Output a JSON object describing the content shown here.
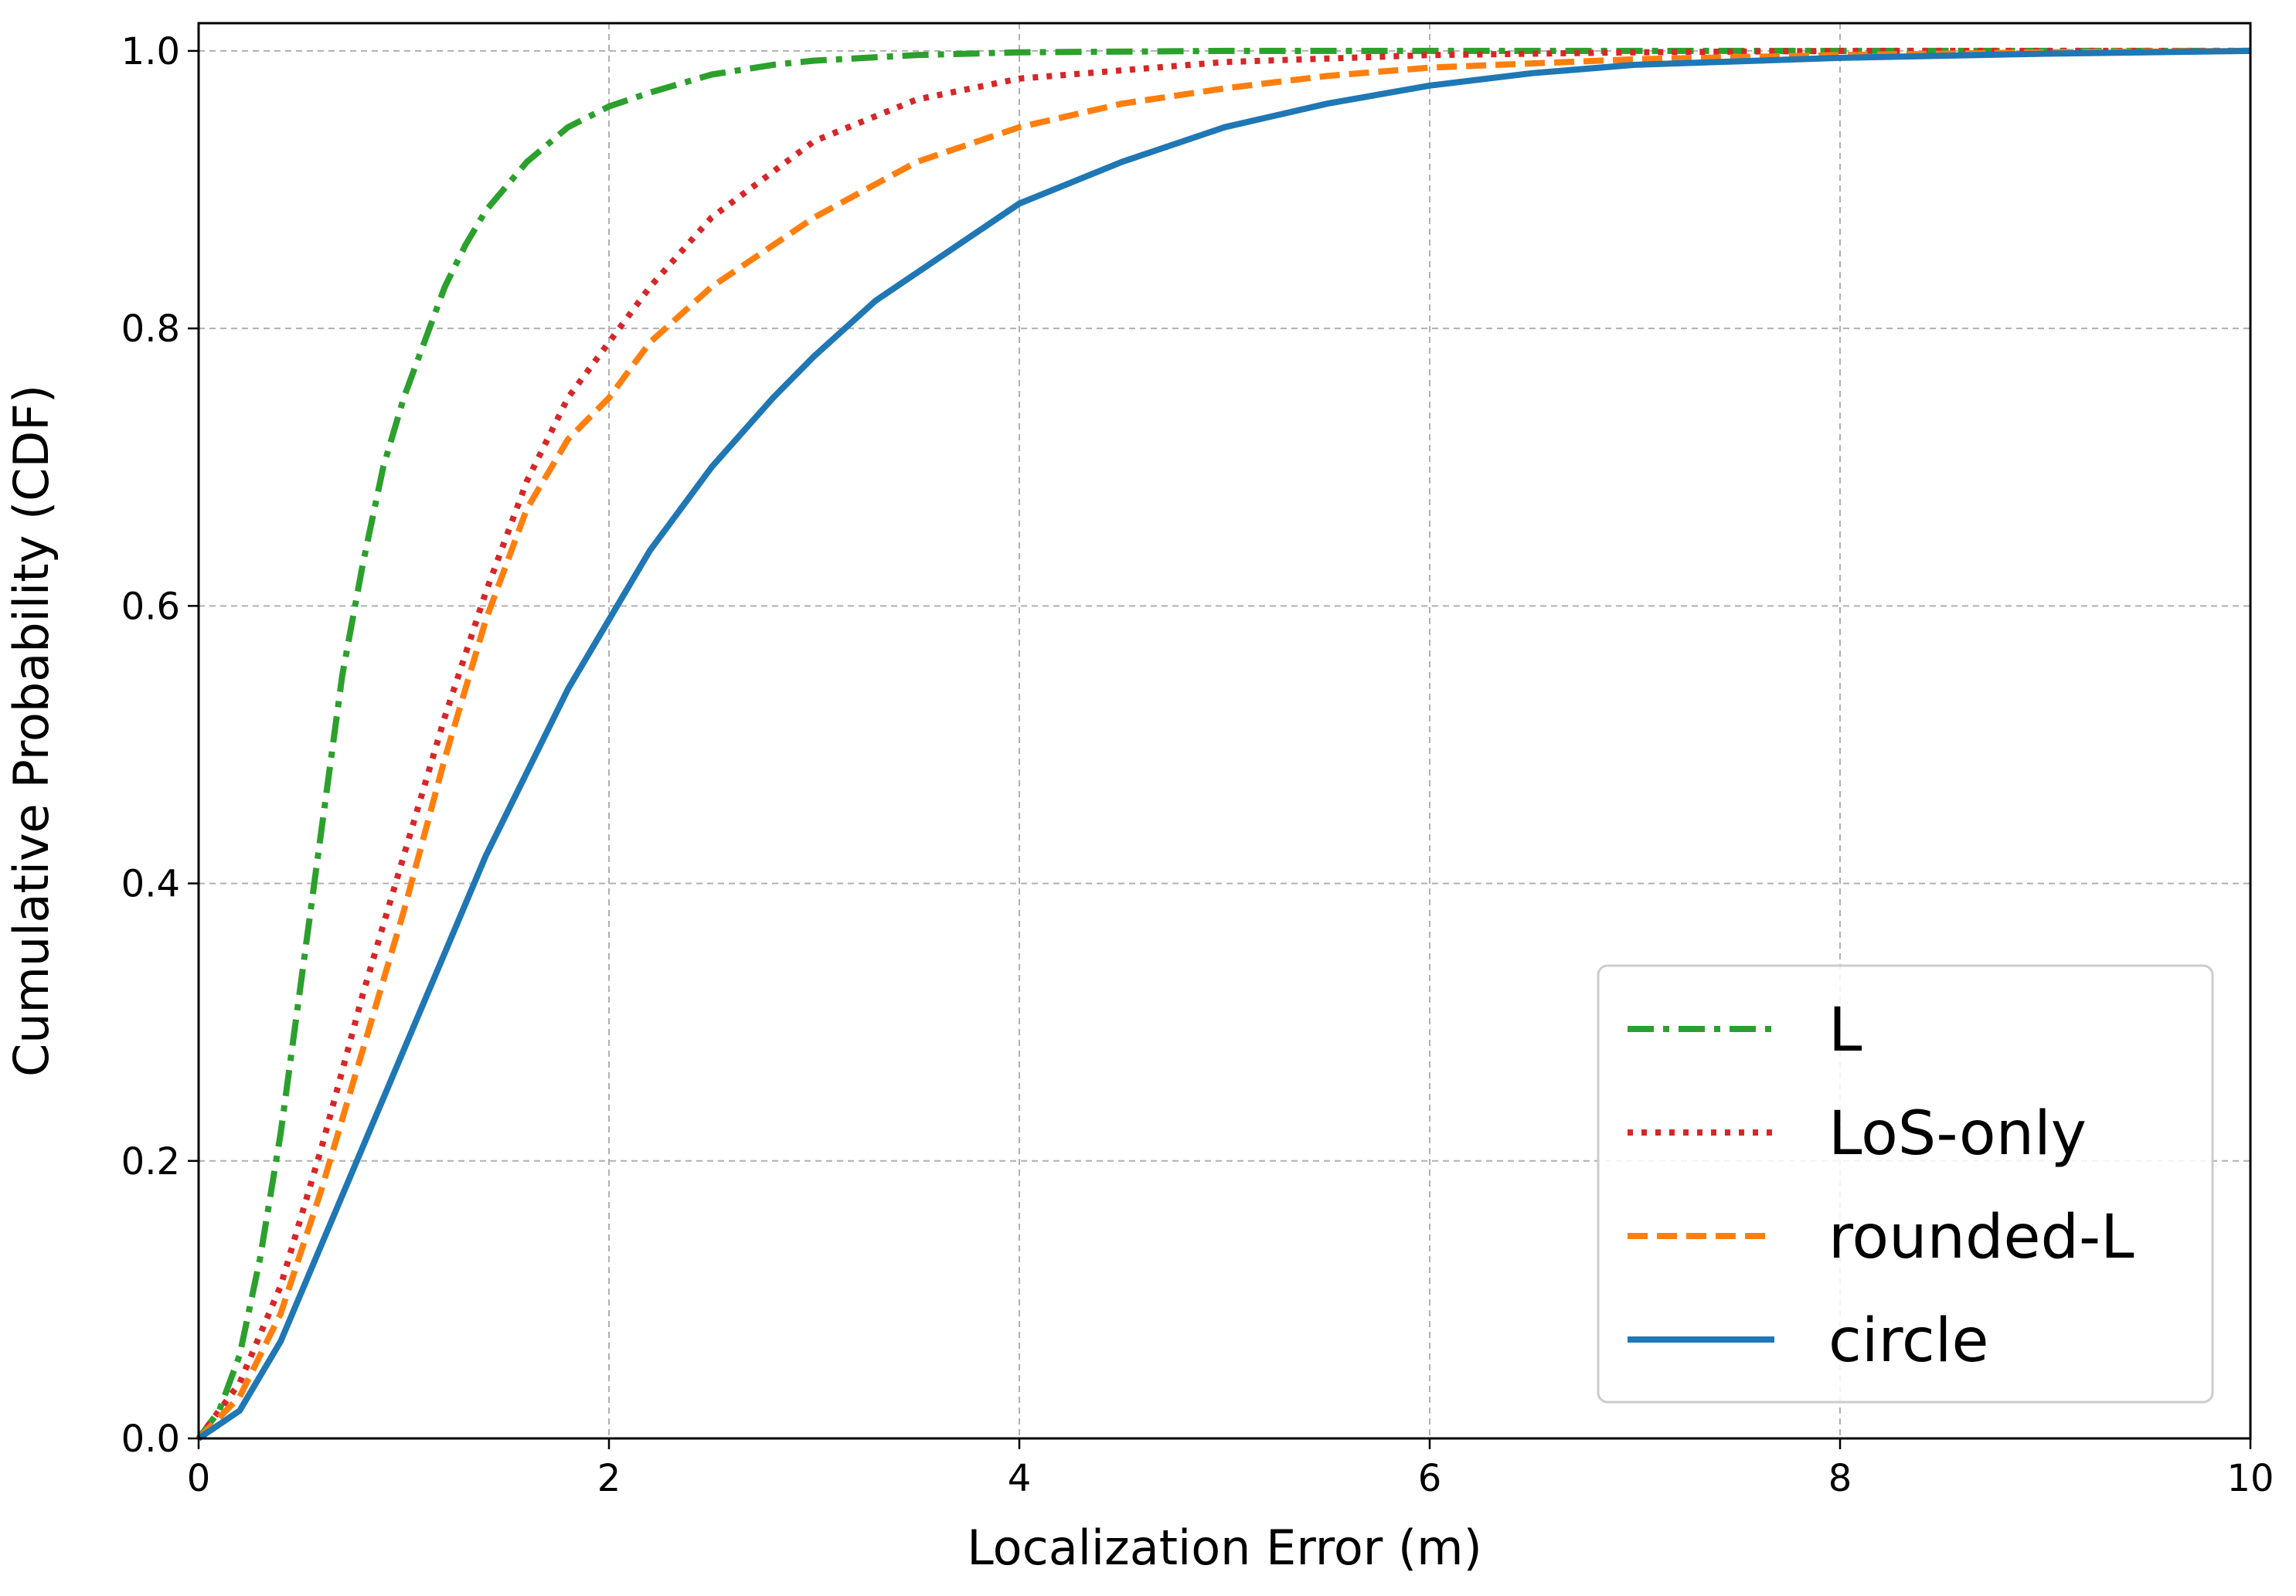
{
  "chart_data": {
    "type": "line",
    "title": "",
    "xlabel": "Localization Error (m)",
    "ylabel": "Cumulative Probability (CDF)",
    "xlim": [
      0,
      10
    ],
    "ylim": [
      0,
      1.02
    ],
    "xticks": [
      0,
      2,
      4,
      6,
      8,
      10
    ],
    "xtick_labels": [
      "0",
      "2",
      "4",
      "6",
      "8",
      "10"
    ],
    "yticks": [
      0,
      0.2,
      0.4,
      0.6,
      0.8,
      1.0
    ],
    "ytick_labels": [
      "0.0",
      "0.2",
      "0.4",
      "0.6",
      "0.8",
      "1.0"
    ],
    "grid": true,
    "legend_position": "lower-right",
    "series": [
      {
        "name": "L",
        "color": "#2ca02c",
        "style": "dashdot",
        "x": [
          0,
          0.1,
          0.2,
          0.3,
          0.4,
          0.5,
          0.6,
          0.7,
          0.8,
          0.9,
          1.0,
          1.1,
          1.2,
          1.3,
          1.4,
          1.6,
          1.8,
          2.0,
          2.2,
          2.5,
          2.8,
          3.0,
          3.5,
          4.0,
          5.0,
          6.0,
          8.0,
          10.0
        ],
        "y": [
          0,
          0.02,
          0.06,
          0.13,
          0.22,
          0.33,
          0.44,
          0.55,
          0.63,
          0.7,
          0.75,
          0.79,
          0.83,
          0.86,
          0.885,
          0.92,
          0.945,
          0.96,
          0.97,
          0.983,
          0.99,
          0.993,
          0.997,
          0.999,
          1.0,
          1.0,
          1.0,
          1.0
        ]
      },
      {
        "name": "LoS-only",
        "color": "#d62728",
        "style": "dotted",
        "x": [
          0,
          0.2,
          0.4,
          0.6,
          0.8,
          1.0,
          1.2,
          1.4,
          1.6,
          1.8,
          2.0,
          2.2,
          2.5,
          3.0,
          3.5,
          4.0,
          5.0,
          6.0,
          7.0,
          8.0,
          10.0
        ],
        "y": [
          0,
          0.04,
          0.11,
          0.21,
          0.32,
          0.42,
          0.52,
          0.61,
          0.69,
          0.75,
          0.79,
          0.83,
          0.88,
          0.935,
          0.965,
          0.98,
          0.992,
          0.997,
          0.999,
          1.0,
          1.0
        ]
      },
      {
        "name": "rounded-L",
        "color": "#ff7f0e",
        "style": "dashed",
        "x": [
          0,
          0.2,
          0.4,
          0.6,
          0.8,
          1.0,
          1.2,
          1.4,
          1.6,
          1.8,
          2.0,
          2.2,
          2.5,
          3.0,
          3.5,
          4.0,
          4.5,
          5.0,
          5.5,
          6.0,
          7.0,
          8.0,
          9.0,
          10.0
        ],
        "y": [
          0,
          0.03,
          0.09,
          0.18,
          0.28,
          0.38,
          0.49,
          0.59,
          0.67,
          0.72,
          0.75,
          0.79,
          0.83,
          0.88,
          0.92,
          0.945,
          0.962,
          0.973,
          0.982,
          0.988,
          0.994,
          0.997,
          0.999,
          1.0
        ]
      },
      {
        "name": "circle",
        "color": "#1f77b4",
        "style": "solid",
        "x": [
          0,
          0.2,
          0.4,
          0.6,
          0.8,
          1.0,
          1.2,
          1.4,
          1.6,
          1.8,
          2.0,
          2.2,
          2.5,
          2.8,
          3.0,
          3.3,
          3.6,
          4.0,
          4.5,
          5.0,
          5.5,
          6.0,
          6.5,
          7.0,
          8.0,
          9.0,
          10.0
        ],
        "y": [
          0,
          0.02,
          0.07,
          0.14,
          0.21,
          0.28,
          0.35,
          0.42,
          0.48,
          0.54,
          0.59,
          0.64,
          0.7,
          0.75,
          0.78,
          0.82,
          0.85,
          0.89,
          0.92,
          0.945,
          0.962,
          0.975,
          0.984,
          0.99,
          0.995,
          0.998,
          1.0
        ]
      }
    ]
  }
}
